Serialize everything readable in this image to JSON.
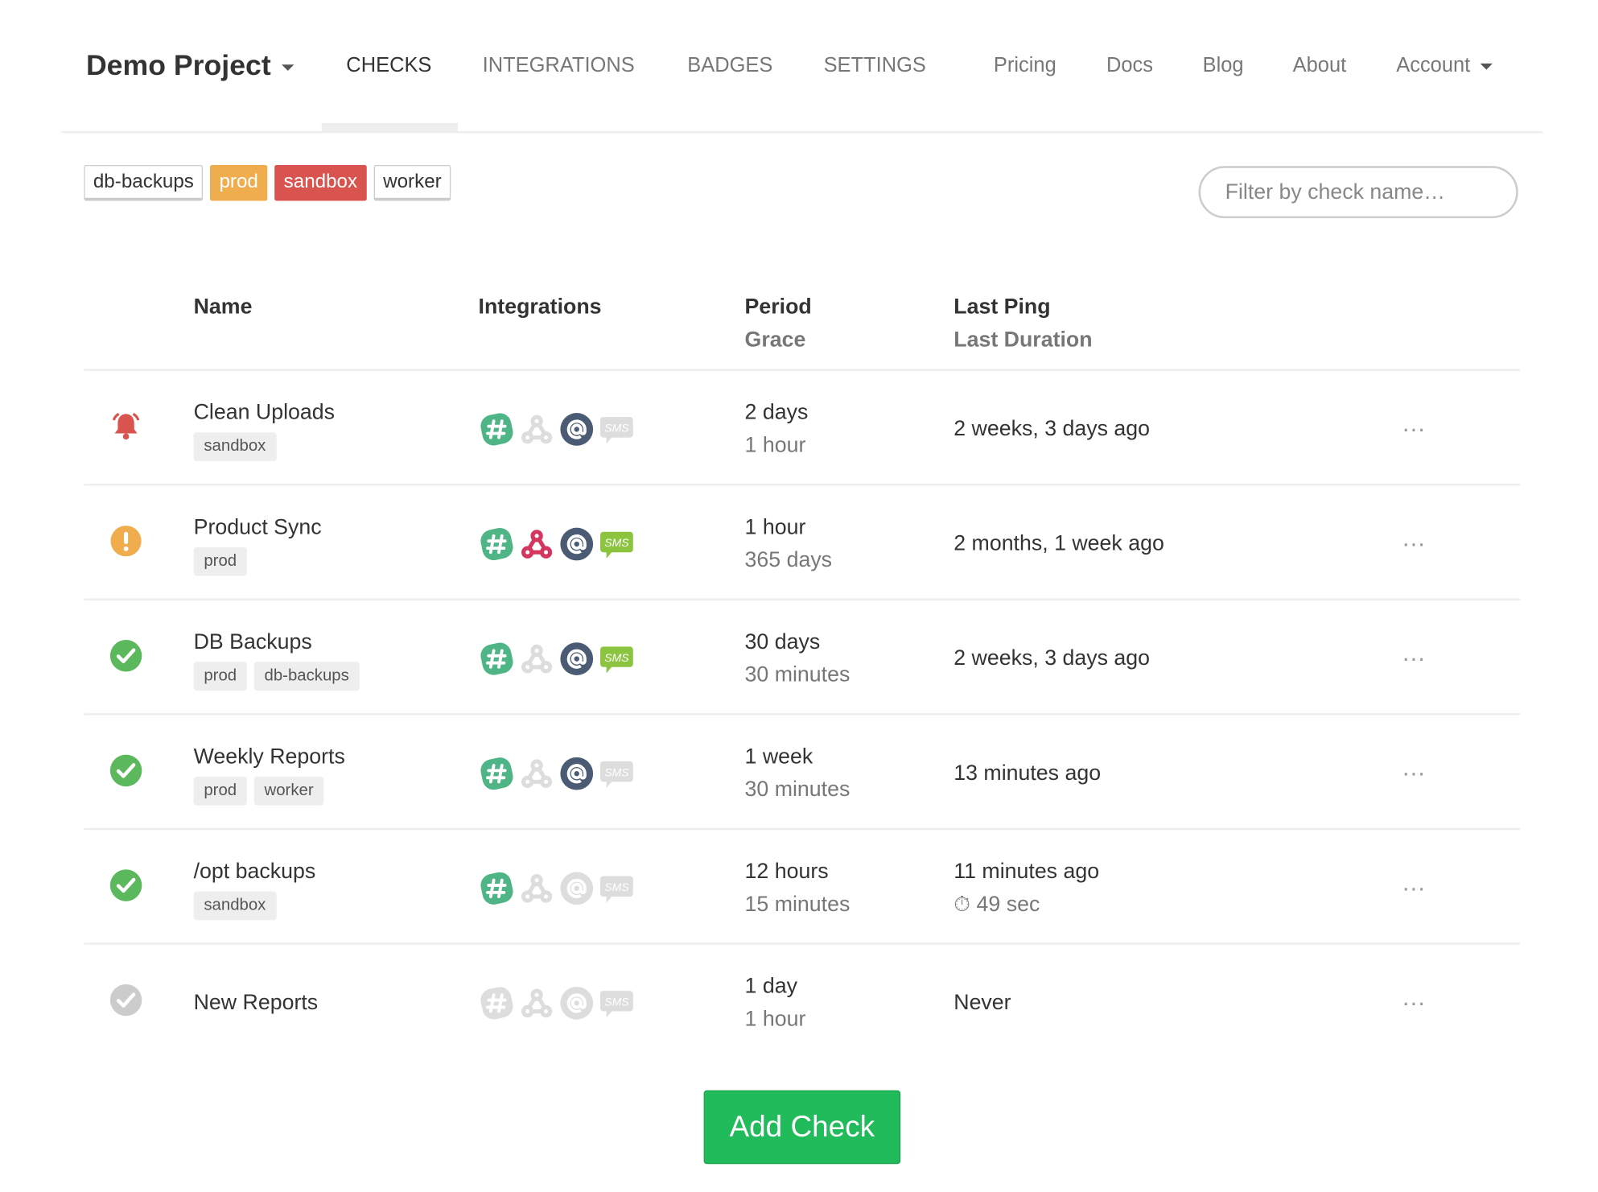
{
  "nav": {
    "project": "Demo Project",
    "items": [
      "CHECKS",
      "INTEGRATIONS",
      "BADGES",
      "SETTINGS"
    ],
    "active": "CHECKS",
    "links": [
      "Pricing",
      "Docs",
      "Blog",
      "About",
      "Account"
    ]
  },
  "tag_filters": [
    {
      "label": "db-backups",
      "bg": "#ffffff",
      "fg": "#333333"
    },
    {
      "label": "prod",
      "bg": "#f0ad4e",
      "fg": "#ffffff"
    },
    {
      "label": "sandbox",
      "bg": "#d9534f",
      "fg": "#ffffff"
    },
    {
      "label": "worker",
      "bg": "#ffffff",
      "fg": "#333333"
    }
  ],
  "search": {
    "placeholder": "Filter by check name…"
  },
  "table": {
    "headers": {
      "name": "Name",
      "integrations": "Integrations",
      "period": "Period",
      "grace": "Grace",
      "last_ping": "Last Ping",
      "last_duration": "Last Duration"
    },
    "rows": [
      {
        "status": "down",
        "name": "Clean Uploads",
        "tags": [
          "sandbox"
        ],
        "integrations": {
          "slack": true,
          "webhook": false,
          "email": true,
          "sms": false
        },
        "period": "2 days",
        "grace": "1 hour",
        "last_ping": "2 weeks, 3 days ago",
        "duration": ""
      },
      {
        "status": "grace",
        "name": "Product Sync",
        "tags": [
          "prod"
        ],
        "integrations": {
          "slack": true,
          "webhook": true,
          "email": true,
          "sms": true
        },
        "period": "1 hour",
        "grace": "365 days",
        "last_ping": "2 months, 1 week ago",
        "duration": ""
      },
      {
        "status": "up",
        "name": "DB Backups",
        "tags": [
          "prod",
          "db-backups"
        ],
        "integrations": {
          "slack": true,
          "webhook": false,
          "email": true,
          "sms": true
        },
        "period": "30 days",
        "grace": "30 minutes",
        "last_ping": "2 weeks, 3 days ago",
        "duration": ""
      },
      {
        "status": "up",
        "name": "Weekly Reports",
        "tags": [
          "prod",
          "worker"
        ],
        "integrations": {
          "slack": true,
          "webhook": false,
          "email": true,
          "sms": false
        },
        "period": "1 week",
        "grace": "30 minutes",
        "last_ping": "13 minutes ago",
        "duration": ""
      },
      {
        "status": "up",
        "name": "/opt backups",
        "tags": [
          "sandbox"
        ],
        "integrations": {
          "slack": true,
          "webhook": false,
          "email": false,
          "sms": false
        },
        "period": "12 hours",
        "grace": "15 minutes",
        "last_ping": "11 minutes ago",
        "duration": "49 sec"
      },
      {
        "status": "new",
        "name": "New Reports",
        "tags": [],
        "integrations": {
          "slack": false,
          "webhook": false,
          "email": false,
          "sms": false
        },
        "period": "1 day",
        "grace": "1 hour",
        "last_ping": "Never",
        "duration": ""
      }
    ]
  },
  "menu_icon": "…",
  "add_check": "Add Check",
  "colors": {
    "down": "#d9534f",
    "grace": "#f0ad4e",
    "up": "#5cb85c",
    "new": "#cccccc",
    "slack": "#4fb586",
    "webhook": "#d4365f",
    "email": "#4a5b73",
    "sms": "#8cc33f",
    "off": "#dddddd"
  },
  "sms_label": "SMS"
}
